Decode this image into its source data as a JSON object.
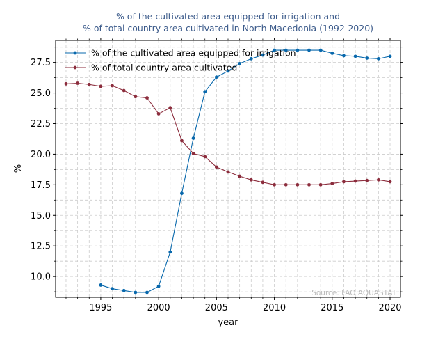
{
  "chart_data": {
    "type": "line",
    "title_line1": "% of the cultivated area equipped for irrigation and",
    "title_line2": "% of total country area cultivated in North Macedonia (1992-2020)",
    "xlabel": "year",
    "ylabel": "%",
    "xlim": [
      1991.1,
      2020.9
    ],
    "ylim": [
      8.3,
      29.3
    ],
    "xticks": [
      1995,
      2000,
      2005,
      2010,
      2015,
      2020
    ],
    "yticks": [
      10.0,
      12.5,
      15.0,
      17.5,
      20.0,
      22.5,
      25.0,
      27.5
    ],
    "grid": true,
    "legend_position": "upper-left",
    "source_note": "Source: FAO AQUASTAT",
    "colors": {
      "title": "#3b5a8a",
      "series_irrigation": "#0868ac",
      "series_cultivated": "#8c2d3d",
      "grid": "#cccccc",
      "source": "#bbbbbb"
    },
    "series": [
      {
        "name": "% of the cultivated area equipped for irrigation",
        "color": "#0868ac",
        "x": [
          1995,
          1996,
          1997,
          1998,
          1999,
          2000,
          2001,
          2002,
          2003,
          2004,
          2005,
          2006,
          2007,
          2008,
          2009,
          2010,
          2011,
          2012,
          2013,
          2014,
          2015,
          2016,
          2017,
          2018,
          2019,
          2020
        ],
        "y": [
          9.3,
          9.0,
          8.85,
          8.7,
          8.7,
          9.2,
          12.0,
          16.8,
          21.3,
          25.1,
          26.3,
          26.8,
          27.4,
          27.8,
          28.1,
          28.5,
          28.5,
          28.5,
          28.5,
          28.5,
          28.25,
          28.05,
          28.0,
          27.85,
          27.8,
          28.0
        ]
      },
      {
        "name": "% of total country area cultivated",
        "color": "#8c2d3d",
        "x": [
          1992,
          1993,
          1994,
          1995,
          1996,
          1997,
          1998,
          1999,
          2000,
          2001,
          2002,
          2003,
          2004,
          2005,
          2006,
          2007,
          2008,
          2009,
          2010,
          2011,
          2012,
          2013,
          2014,
          2015,
          2016,
          2017,
          2018,
          2019,
          2020
        ],
        "y": [
          25.75,
          25.8,
          25.7,
          25.55,
          25.6,
          25.2,
          24.7,
          24.6,
          23.3,
          23.8,
          21.1,
          20.05,
          19.8,
          18.95,
          18.55,
          18.2,
          17.9,
          17.7,
          17.5,
          17.5,
          17.5,
          17.5,
          17.5,
          17.6,
          17.75,
          17.8,
          17.85,
          17.9,
          17.75
        ]
      }
    ]
  }
}
